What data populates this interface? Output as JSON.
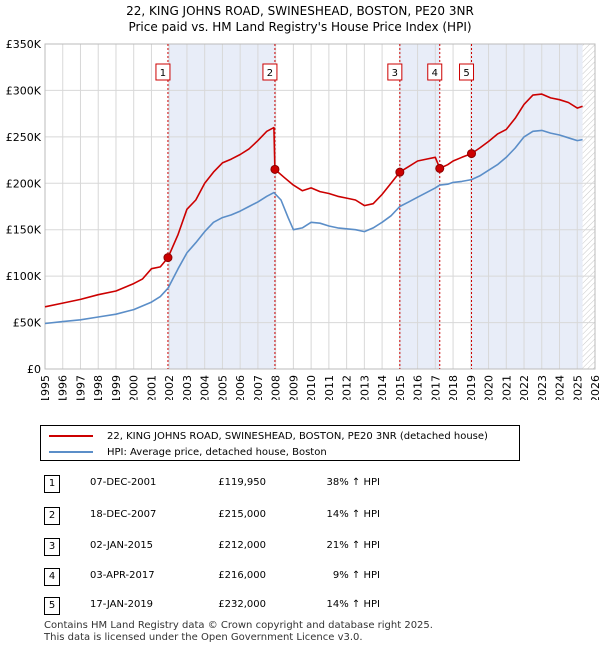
{
  "title_line1": "22, KING JOHNS ROAD, SWINESHEAD, BOSTON, PE20 3NR",
  "title_line2": "Price paid vs. HM Land Registry's House Price Index (HPI)",
  "colors": {
    "property": "#cc0000",
    "hpi": "#5b8ec8",
    "band": "#e8edf8",
    "grid": "#d8d8d8"
  },
  "chart_data": {
    "type": "line",
    "ylim": [
      0,
      350000
    ],
    "xlim": [
      1995,
      2026
    ],
    "y_ticks": [
      {
        "value": 0,
        "label": "£0"
      },
      {
        "value": 50000,
        "label": "£50K"
      },
      {
        "value": 100000,
        "label": "£100K"
      },
      {
        "value": 150000,
        "label": "£150K"
      },
      {
        "value": 200000,
        "label": "£200K"
      },
      {
        "value": 250000,
        "label": "£250K"
      },
      {
        "value": 300000,
        "label": "£300K"
      },
      {
        "value": 350000,
        "label": "£350K"
      }
    ],
    "x_ticks": [
      "1995",
      "1996",
      "1997",
      "1998",
      "1999",
      "2000",
      "2001",
      "2002",
      "2003",
      "2004",
      "2005",
      "2006",
      "2007",
      "2008",
      "2009",
      "2010",
      "2011",
      "2012",
      "2013",
      "2014",
      "2015",
      "2016",
      "2017",
      "2018",
      "2019",
      "2020",
      "2021",
      "2022",
      "2023",
      "2024",
      "2025",
      "2026"
    ],
    "bands": [
      [
        2001.93,
        2007.96
      ],
      [
        2015.0,
        2017.25
      ],
      [
        2019.04,
        2025.3
      ]
    ],
    "hatch_from": 2025.3,
    "series": [
      {
        "name": "22, KING JOHNS ROAD, SWINESHEAD, BOSTON, PE20 3NR (detached house)",
        "x": [
          1995,
          1996,
          1997,
          1998,
          1999,
          2000,
          2000.5,
          2001,
          2001.5,
          2001.93,
          2002.5,
          2003,
          2003.5,
          2004,
          2004.5,
          2005,
          2005.5,
          2006,
          2006.5,
          2007,
          2007.5,
          2007.9,
          2007.96,
          2008.5,
          2009,
          2009.5,
          2010,
          2010.5,
          2011,
          2011.5,
          2012,
          2012.5,
          2013,
          2013.5,
          2014,
          2014.5,
          2015.0,
          2015.5,
          2016,
          2016.5,
          2017,
          2017.25,
          2017.7,
          2018,
          2018.5,
          2019.04,
          2019.5,
          2020,
          2020.5,
          2021,
          2021.5,
          2022,
          2022.5,
          2023,
          2023.5,
          2024,
          2024.5,
          2025,
          2025.3
        ],
        "values": [
          67000,
          71000,
          75000,
          80000,
          84000,
          92000,
          97000,
          108000,
          110000,
          119950,
          145000,
          172000,
          182000,
          200000,
          212000,
          222000,
          226000,
          231000,
          237000,
          246000,
          256000,
          260000,
          215000,
          206000,
          198000,
          192000,
          195000,
          191000,
          189000,
          186000,
          184000,
          182000,
          176000,
          178000,
          188000,
          200000,
          212000,
          218000,
          224000,
          226000,
          228000,
          216000,
          220000,
          224000,
          228000,
          232000,
          238000,
          245000,
          253000,
          258000,
          270000,
          285000,
          295000,
          296000,
          292000,
          290000,
          287000,
          281000,
          283000
        ]
      },
      {
        "name": "HPI: Average price, detached house, Boston",
        "x": [
          1995,
          1996,
          1997,
          1998,
          1999,
          2000,
          2000.5,
          2001,
          2001.5,
          2001.93,
          2002.5,
          2003,
          2003.5,
          2004,
          2004.5,
          2005,
          2005.5,
          2006,
          2006.5,
          2007,
          2007.5,
          2007.9,
          2008.3,
          2008.7,
          2009,
          2009.5,
          2010,
          2010.5,
          2011,
          2011.5,
          2012,
          2012.5,
          2013,
          2013.5,
          2014,
          2014.5,
          2015.0,
          2015.5,
          2016,
          2016.5,
          2017,
          2017.25,
          2017.7,
          2018,
          2018.5,
          2019.04,
          2019.5,
          2020,
          2020.5,
          2021,
          2021.5,
          2022,
          2022.5,
          2023,
          2023.5,
          2024,
          2024.5,
          2025,
          2025.3
        ],
        "values": [
          49000,
          51000,
          53000,
          56000,
          59000,
          64000,
          68000,
          72000,
          78000,
          87000,
          108000,
          125000,
          136000,
          148000,
          158000,
          163000,
          166000,
          170000,
          175000,
          180000,
          186000,
          190000,
          182000,
          163000,
          150000,
          152000,
          158000,
          157000,
          154000,
          152000,
          151000,
          150000,
          148000,
          152000,
          158000,
          165000,
          175000,
          180000,
          185000,
          190000,
          195000,
          198000,
          199000,
          201000,
          202000,
          204000,
          208000,
          214000,
          220000,
          228000,
          238000,
          250000,
          256000,
          257000,
          254000,
          252000,
          249000,
          246000,
          247000
        ]
      }
    ],
    "markers": [
      {
        "label": "1",
        "x": 2001.93,
        "y": 119950
      },
      {
        "label": "2",
        "x": 2007.96,
        "y": 215000
      },
      {
        "label": "3",
        "x": 2015.0,
        "y": 212000
      },
      {
        "label": "4",
        "x": 2017.25,
        "y": 216000
      },
      {
        "label": "5",
        "x": 2019.04,
        "y": 232000
      }
    ]
  },
  "legend": {
    "property": "22, KING JOHNS ROAD, SWINESHEAD, BOSTON, PE20 3NR (detached house)",
    "hpi": "HPI: Average price, detached house, Boston"
  },
  "transactions": [
    {
      "num": "1",
      "date": "07-DEC-2001",
      "price": "£119,950",
      "hpi": "38% ↑ HPI"
    },
    {
      "num": "2",
      "date": "18-DEC-2007",
      "price": "£215,000",
      "hpi": "14% ↑ HPI"
    },
    {
      "num": "3",
      "date": "02-JAN-2015",
      "price": "£212,000",
      "hpi": "21% ↑ HPI"
    },
    {
      "num": "4",
      "date": "03-APR-2017",
      "price": "£216,000",
      "hpi": "9% ↑ HPI"
    },
    {
      "num": "5",
      "date": "17-JAN-2019",
      "price": "£232,000",
      "hpi": "14% ↑ HPI"
    }
  ],
  "footer": {
    "line1": "Contains HM Land Registry data © Crown copyright and database right 2025.",
    "line2": "This data is licensed under the Open Government Licence v3.0."
  }
}
